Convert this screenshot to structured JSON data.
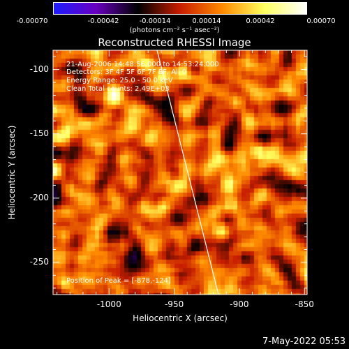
{
  "chart_data": {
    "type": "heatmap",
    "title": "Reconstructed RHESSI Image",
    "xlabel": "Heliocentric X (arcsec)",
    "ylabel": "Heliocentric Y (arcsec)",
    "xlim": [
      -1043,
      -848
    ],
    "ylim": [
      -275,
      -85
    ],
    "x_ticks": [
      "-1000",
      "-950",
      "-900",
      "-850"
    ],
    "x_tick_values": [
      -1000,
      -950,
      -900,
      -850
    ],
    "y_ticks": [
      "-100",
      "-150",
      "-200",
      "-250"
    ],
    "y_tick_values": [
      -100,
      -150,
      -200,
      -250
    ],
    "colorbar": {
      "ticks": [
        "-0.00070",
        "-0.00042",
        "-0.00014",
        "0.00014",
        "0.00042",
        "0.00070"
      ],
      "units": "(photons cm⁻² s⁻¹ asec⁻²)",
      "colors": [
        "#1d1dff",
        "#6a00c0",
        "#000000",
        "#c81e00",
        "#ff8a00",
        "#ffff60",
        "#ffffff"
      ]
    },
    "annotations": [
      "21-Aug-2006 14:48:56.000 to 14:53:24.000",
      "Detectors: 3F 4F 5F 6F 7F 8F, All 0",
      "Energy Range: 25.0 - 50.0 keV",
      "Clean     Total counts: 2.49E+03"
    ],
    "peak_label": "Position of Peak = [-878,-124]"
  },
  "footer": {
    "timestamp": "7-May-2022 05:53"
  }
}
